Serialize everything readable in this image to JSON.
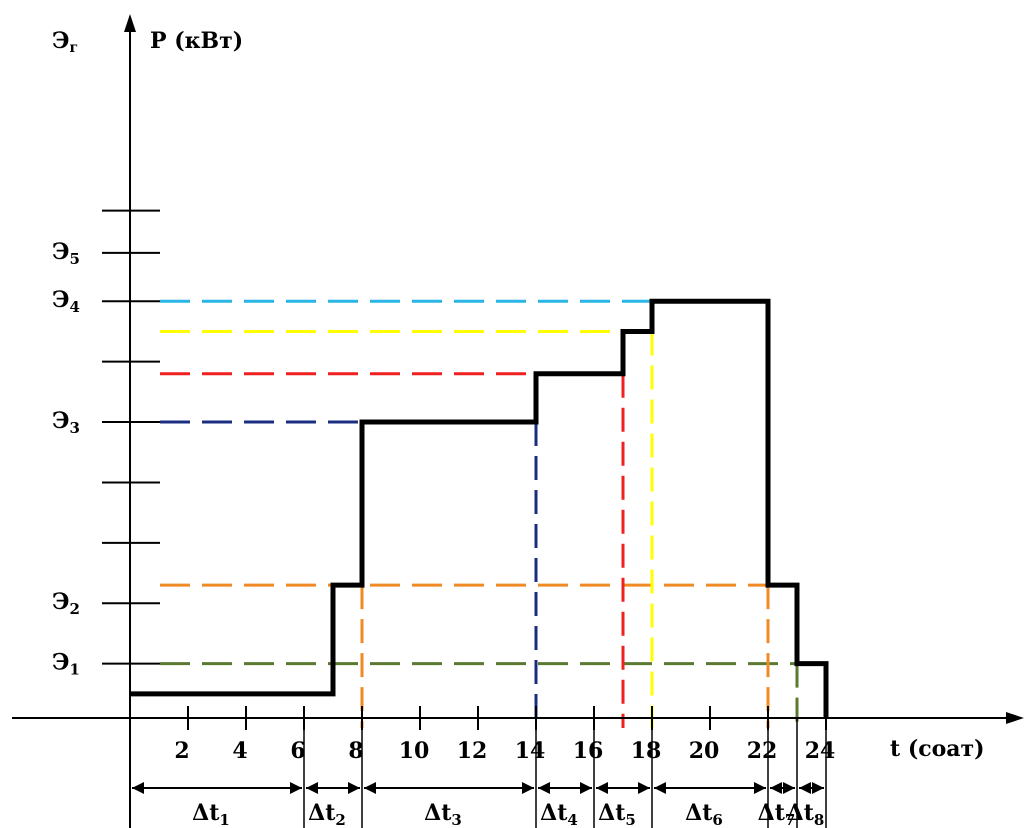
{
  "chart_data": {
    "type": "line",
    "title": "",
    "ylabel": "P (кВт)",
    "ylabel_left": "Э",
    "ylabel_left_sub": "г",
    "xlabel": "t (сoат)",
    "xlim": [
      0,
      27
    ],
    "ylim": [
      0,
      10.5
    ],
    "x_ticks": [
      2,
      4,
      6,
      8,
      10,
      12,
      14,
      16,
      18,
      20,
      22,
      24
    ],
    "y_tick_values": [
      0.9,
      1.9,
      2.9,
      3.9,
      4.9,
      5.9,
      6.9,
      7.7,
      8.4
    ],
    "y_labels": [
      {
        "text": "Э",
        "sub": "1",
        "y": 0.9
      },
      {
        "text": "Э",
        "sub": "2",
        "y": 1.9
      },
      {
        "text": "Э",
        "sub": "3",
        "y": 4.9
      },
      {
        "text": "Э",
        "sub": "4",
        "y": 6.9
      },
      {
        "text": "Э",
        "sub": "5",
        "y": 7.7
      }
    ],
    "series": [
      {
        "points": [
          [
            0,
            0.4
          ],
          [
            7,
            0.4
          ],
          [
            7,
            2.2
          ],
          [
            8,
            2.2
          ],
          [
            8,
            4.9
          ],
          [
            14,
            4.9
          ],
          [
            14,
            5.7
          ],
          [
            17,
            5.7
          ],
          [
            17,
            6.4
          ],
          [
            18,
            6.4
          ],
          [
            18,
            6.9
          ],
          [
            22,
            6.9
          ],
          [
            22,
            2.2
          ],
          [
            23,
            2.2
          ],
          [
            23,
            0.9
          ],
          [
            24,
            0.9
          ],
          [
            24,
            0
          ]
        ],
        "color": "#000000"
      }
    ],
    "h_dashes": [
      {
        "y": 6.9,
        "x_end": 18,
        "color": "#29b6e6"
      },
      {
        "y": 6.4,
        "x_end": 18,
        "color": "#ffff00"
      },
      {
        "y": 5.7,
        "x_end": 14,
        "color": "#ee2020"
      },
      {
        "y": 4.9,
        "x_end": 8,
        "color": "#1a2e80"
      },
      {
        "y": 2.2,
        "x_end": 23,
        "color": "#f08a24"
      },
      {
        "y": 0.9,
        "x_end": 23,
        "color": "#5a7a30"
      }
    ],
    "v_dashes": [
      {
        "x": 8,
        "y_top": 2.2,
        "color": "#f08a24"
      },
      {
        "x": 14,
        "y_top": 4.9,
        "color": "#1a2e80"
      },
      {
        "x": 17,
        "y_top": 5.7,
        "color": "#ee2020"
      },
      {
        "x": 18,
        "y_top": 6.4,
        "color": "#ffff00"
      },
      {
        "x": 22,
        "y_top": 2.2,
        "color": "#f08a24"
      },
      {
        "x": 23,
        "y_top": 0.9,
        "color": "#5a7a30"
      }
    ],
    "intervals": [
      {
        "label": "Δt",
        "sub": "1",
        "x0": 0,
        "x1": 6
      },
      {
        "label": "Δt",
        "sub": "2",
        "x0": 6,
        "x1": 8
      },
      {
        "label": "Δt",
        "sub": "3",
        "x0": 8,
        "x1": 14
      },
      {
        "label": "Δt",
        "sub": "4",
        "x0": 14,
        "x1": 16
      },
      {
        "label": "Δt",
        "sub": "5",
        "x0": 16,
        "x1": 18
      },
      {
        "label": "Δt",
        "sub": "6",
        "x0": 18,
        "x1": 22
      },
      {
        "label": "Δt",
        "sub": "7",
        "x0": 22,
        "x1": 23
      },
      {
        "label": "Δt",
        "sub": "8",
        "x0": 23,
        "x1": 24
      }
    ]
  }
}
